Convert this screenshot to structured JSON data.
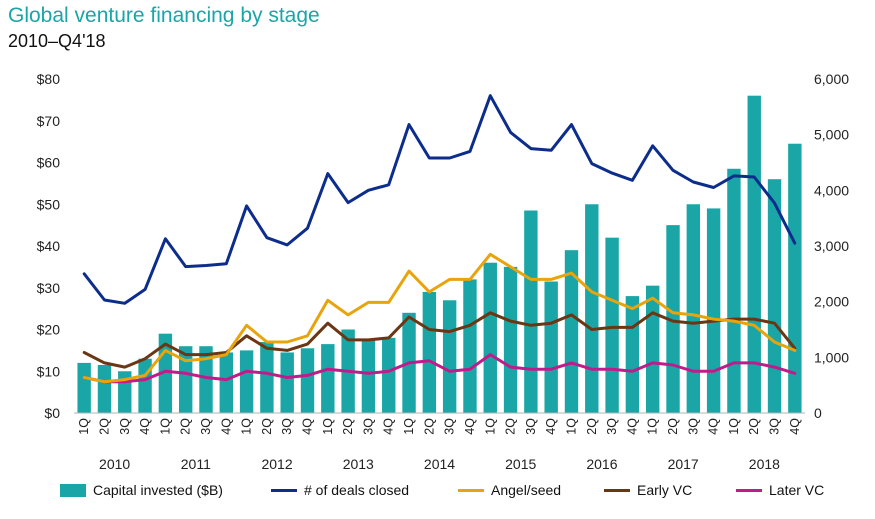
{
  "header": {
    "title": "Global venture financing by stage",
    "subtitle": "2010–Q4'18"
  },
  "colors": {
    "capital": "#1aa6a6",
    "deals": "#0d2d8c",
    "angel": "#e8a40c",
    "early": "#6b3613",
    "later": "#c01b8a",
    "title": "#1aa6a6",
    "axis": "#b3b3b3"
  },
  "legend": [
    {
      "label": "Capital invested ($B)",
      "kind": "box",
      "color": "#1aa6a6"
    },
    {
      "label": "# of deals closed",
      "kind": "line",
      "color": "#0d2d8c"
    },
    {
      "label": "Angel/seed",
      "kind": "line",
      "color": "#e8a40c"
    },
    {
      "label": "Early VC",
      "kind": "line",
      "color": "#6b3613"
    },
    {
      "label": "Later VC",
      "kind": "line",
      "color": "#c01b8a"
    }
  ],
  "chart_data": {
    "type": "bar",
    "title": "Global venture financing by stage",
    "subtitle": "2010–Q4'18",
    "quarters": [
      "1Q",
      "2Q",
      "3Q",
      "4Q",
      "1Q",
      "2Q",
      "3Q",
      "4Q",
      "1Q",
      "2Q",
      "3Q",
      "4Q",
      "1Q",
      "2Q",
      "3Q",
      "4Q",
      "1Q",
      "2Q",
      "3Q",
      "4Q",
      "1Q",
      "2Q",
      "3Q",
      "4Q",
      "1Q",
      "2Q",
      "3Q",
      "4Q",
      "1Q",
      "2Q",
      "3Q",
      "4Q",
      "1Q",
      "2Q",
      "3Q",
      "4Q"
    ],
    "years": [
      "2010",
      "2011",
      "2012",
      "2013",
      "2014",
      "2015",
      "2016",
      "2017",
      "2018"
    ],
    "y_left": {
      "ticks": [
        "$0",
        "$10",
        "$20",
        "$30",
        "$40",
        "$50",
        "$60",
        "$70",
        "$80"
      ],
      "range": [
        0,
        80
      ]
    },
    "y_right": {
      "ticks": [
        "0",
        "1,000",
        "2,000",
        "3,000",
        "4,000",
        "5,000",
        "6,000"
      ],
      "range": [
        0,
        6000
      ]
    },
    "bars": {
      "name": "Capital invested ($B)",
      "values": [
        12,
        11.5,
        10,
        13,
        19,
        16,
        16,
        14.5,
        15,
        17,
        14.5,
        15.5,
        16.5,
        20,
        17.5,
        18,
        24,
        29,
        27,
        32,
        36,
        35,
        48.5,
        31.5,
        39,
        50,
        42,
        28,
        30.5,
        45,
        50,
        49,
        58.5,
        76,
        56,
        64.5
      ]
    },
    "series": [
      {
        "name": "# of deals closed",
        "axis": "right",
        "values": [
          2500,
          2030,
          1970,
          2220,
          3130,
          2630,
          2650,
          2680,
          3720,
          3150,
          3020,
          3320,
          4300,
          3780,
          4000,
          4100,
          5180,
          4580,
          4580,
          4700,
          5700,
          5040,
          4750,
          4720,
          5180,
          4480,
          4310,
          4180,
          4800,
          4360,
          4150,
          4050,
          4260,
          4240,
          3770,
          3050
        ]
      },
      {
        "name": "Angel/seed",
        "axis": "left",
        "values": [
          8.5,
          7.5,
          8,
          9,
          15,
          12.5,
          13,
          14,
          21,
          17,
          17,
          18.5,
          27,
          23.5,
          26.5,
          26.5,
          34,
          29,
          32,
          32,
          38,
          35,
          32,
          32,
          33.5,
          29,
          27,
          25,
          27.5,
          24,
          23.5,
          22.5,
          22,
          21,
          17,
          15
        ]
      },
      {
        "name": "Early VC",
        "axis": "left",
        "values": [
          14.5,
          12,
          11,
          13,
          16.5,
          14,
          14,
          14.5,
          18.5,
          15.5,
          15,
          16.5,
          21.5,
          17.5,
          17.5,
          18,
          23,
          20,
          19.5,
          21,
          24,
          22,
          21,
          21.5,
          23.5,
          20,
          20.5,
          20.5,
          24,
          22,
          21.5,
          22,
          22.5,
          22.5,
          21.5,
          15.5
        ]
      },
      {
        "name": "Later VC",
        "axis": "left",
        "values": [
          8.5,
          7.5,
          7.5,
          8,
          10,
          9.5,
          8.5,
          8,
          10,
          9.5,
          8.5,
          9,
          10.5,
          10,
          9.5,
          10,
          12,
          12.5,
          10,
          10.5,
          14,
          11,
          10.5,
          10.5,
          12,
          10.5,
          10.5,
          10,
          12,
          11.5,
          10,
          10,
          12,
          12,
          11,
          9.5
        ]
      }
    ]
  }
}
